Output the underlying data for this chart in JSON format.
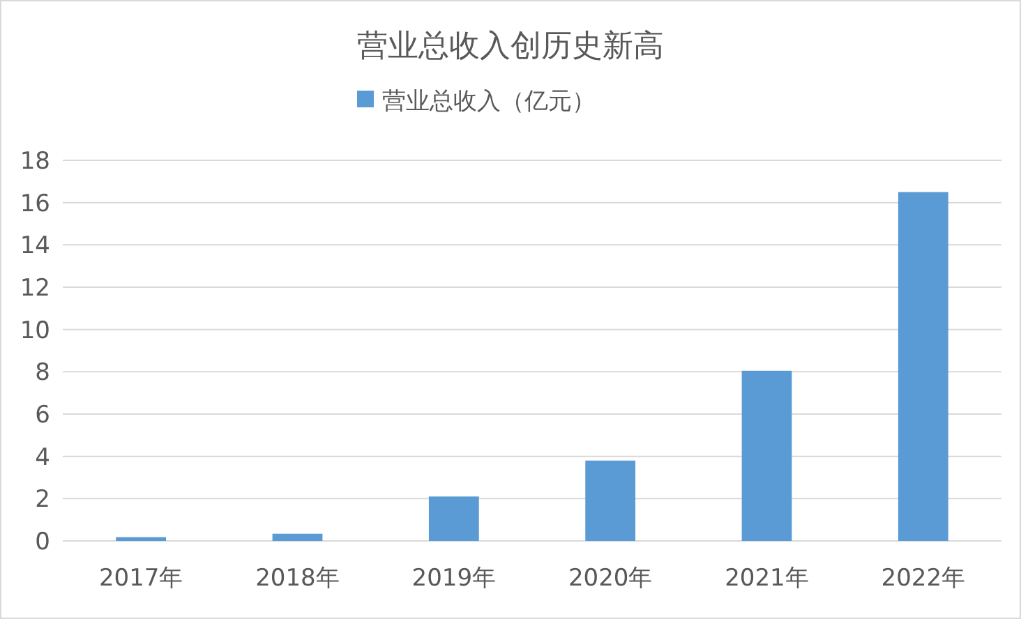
{
  "chart_data": {
    "type": "bar",
    "title": "营业总收入创历史新高",
    "categories": [
      "2017年",
      "2018年",
      "2019年",
      "2020年",
      "2021年",
      "2022年"
    ],
    "series": [
      {
        "name": "营业总收入（亿元）",
        "color": "#5b9bd5",
        "values": [
          0.18,
          0.34,
          2.1,
          3.8,
          8.05,
          16.5
        ]
      }
    ],
    "ylim": [
      0,
      18
    ],
    "yticks": [
      0,
      2,
      4,
      6,
      8,
      10,
      12,
      14,
      16,
      18
    ],
    "grid": "y",
    "legend": "top"
  }
}
